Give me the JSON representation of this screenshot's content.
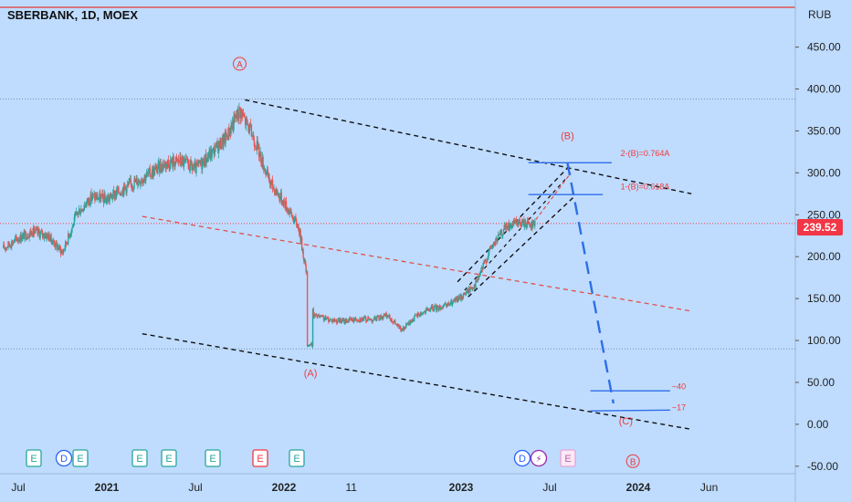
{
  "title": "SBERBANK, 1D, MOEX",
  "currency": "RUB",
  "last_price": "239.52",
  "colors": {
    "background": "#bfdcff",
    "up": "#26a69a",
    "down": "#ef5350",
    "wave_label": "#ef3b3b",
    "target_line": "#2f6ee8",
    "price_line": "#f23645"
  },
  "chart_data": {
    "type": "candlestick",
    "title": "SBERBANK, 1D, MOEX",
    "currency": "RUB",
    "ylim": [
      -60,
      480
    ],
    "y_ticks": [
      "450.00",
      "400.00",
      "350.00",
      "300.00",
      "250.00",
      "200.00",
      "150.00",
      "100.00",
      "50.00",
      "0.00",
      "-50.00"
    ],
    "x_ticks": [
      "Jul",
      "2021",
      "Jul",
      "2022",
      "11",
      "2023",
      "Jul",
      "2024",
      "Jun"
    ],
    "last_price": 239.52,
    "price_path": [
      {
        "date": "2020-06",
        "close": 210
      },
      {
        "date": "2020-07",
        "close": 222
      },
      {
        "date": "2020-08",
        "close": 230
      },
      {
        "date": "2020-09",
        "close": 225
      },
      {
        "date": "2020-10",
        "close": 205
      },
      {
        "date": "2020-11",
        "close": 252
      },
      {
        "date": "2020-12",
        "close": 272
      },
      {
        "date": "2021-01",
        "close": 268
      },
      {
        "date": "2021-02",
        "close": 280
      },
      {
        "date": "2021-03",
        "close": 290
      },
      {
        "date": "2021-04",
        "close": 300
      },
      {
        "date": "2021-05",
        "close": 312
      },
      {
        "date": "2021-06",
        "close": 314
      },
      {
        "date": "2021-07",
        "close": 304
      },
      {
        "date": "2021-08",
        "close": 322
      },
      {
        "date": "2021-09",
        "close": 340
      },
      {
        "date": "2021-10",
        "close": 375
      },
      {
        "date": "2021-11",
        "close": 340
      },
      {
        "date": "2021-12",
        "close": 290
      },
      {
        "date": "2022-01",
        "close": 265
      },
      {
        "date": "2022-02",
        "close": 235
      },
      {
        "date": "2022-03",
        "close": 130
      },
      {
        "date": "2022-04",
        "close": 125
      },
      {
        "date": "2022-05",
        "close": 123
      },
      {
        "date": "2022-06",
        "close": 126
      },
      {
        "date": "2022-07",
        "close": 125
      },
      {
        "date": "2022-08",
        "close": 130
      },
      {
        "date": "2022-09",
        "close": 112
      },
      {
        "date": "2022-10",
        "close": 130
      },
      {
        "date": "2022-11",
        "close": 138
      },
      {
        "date": "2022-12",
        "close": 141
      },
      {
        "date": "2023-01",
        "close": 152
      },
      {
        "date": "2023-02",
        "close": 168
      },
      {
        "date": "2023-03",
        "close": 210
      },
      {
        "date": "2023-04",
        "close": 235
      },
      {
        "date": "2023-05",
        "close": 240
      },
      {
        "date": "2023-06",
        "close": 239.5
      }
    ],
    "labels": {
      "wave_A_top": "A",
      "wave_A_bottom": "(A)",
      "wave_B_top": "(B)",
      "wave_C": "(C)",
      "wave_B_bottom": "B",
      "fib_2": "2-(B)=0.764A",
      "fib_1": "1-(B)=0.618A",
      "target_40": "~40",
      "target_17": "~17"
    },
    "earnings_markers": [
      "E",
      "D",
      "E",
      "E",
      "E",
      "E",
      "E",
      "E",
      "D",
      "E"
    ]
  }
}
